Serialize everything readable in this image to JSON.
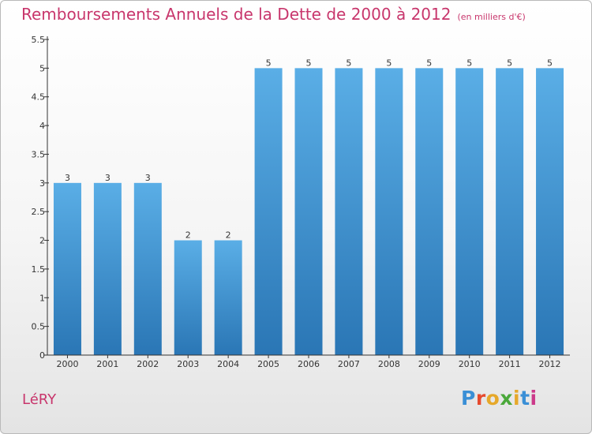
{
  "chart_data": {
    "type": "bar",
    "title": "Remboursements Annuels de la Dette de 2000 à 2012",
    "subtitle": "(en milliers d'€)",
    "categories": [
      "2000",
      "2001",
      "2002",
      "2003",
      "2004",
      "2005",
      "2006",
      "2007",
      "2008",
      "2009",
      "2010",
      "2011",
      "2012"
    ],
    "values": [
      3,
      3,
      3,
      2,
      2,
      5,
      5,
      5,
      5,
      5,
      5,
      5,
      5
    ],
    "ylim": [
      0,
      5.5
    ],
    "yticks": [
      "0",
      "0.5",
      "1",
      "1.5",
      "2",
      "2.5",
      "3",
      "3.5",
      "4",
      "4.5",
      "5",
      "5.5"
    ],
    "grid": false,
    "bar_color_top": "#5aaee6",
    "bar_color_bottom": "#2a76b5"
  },
  "footer": {
    "town": "LéRY",
    "logo_letters": [
      "P",
      "r",
      "o",
      "x",
      "i",
      "t",
      "i"
    ],
    "logo_colors": [
      "#3a8fd6",
      "#e64a2e",
      "#e6a82a",
      "#4aa83a",
      "#e6a82a",
      "#3a8fd6",
      "#cc3a8a"
    ]
  },
  "colors": {
    "title": "#c8366c",
    "axis": "#333333"
  }
}
